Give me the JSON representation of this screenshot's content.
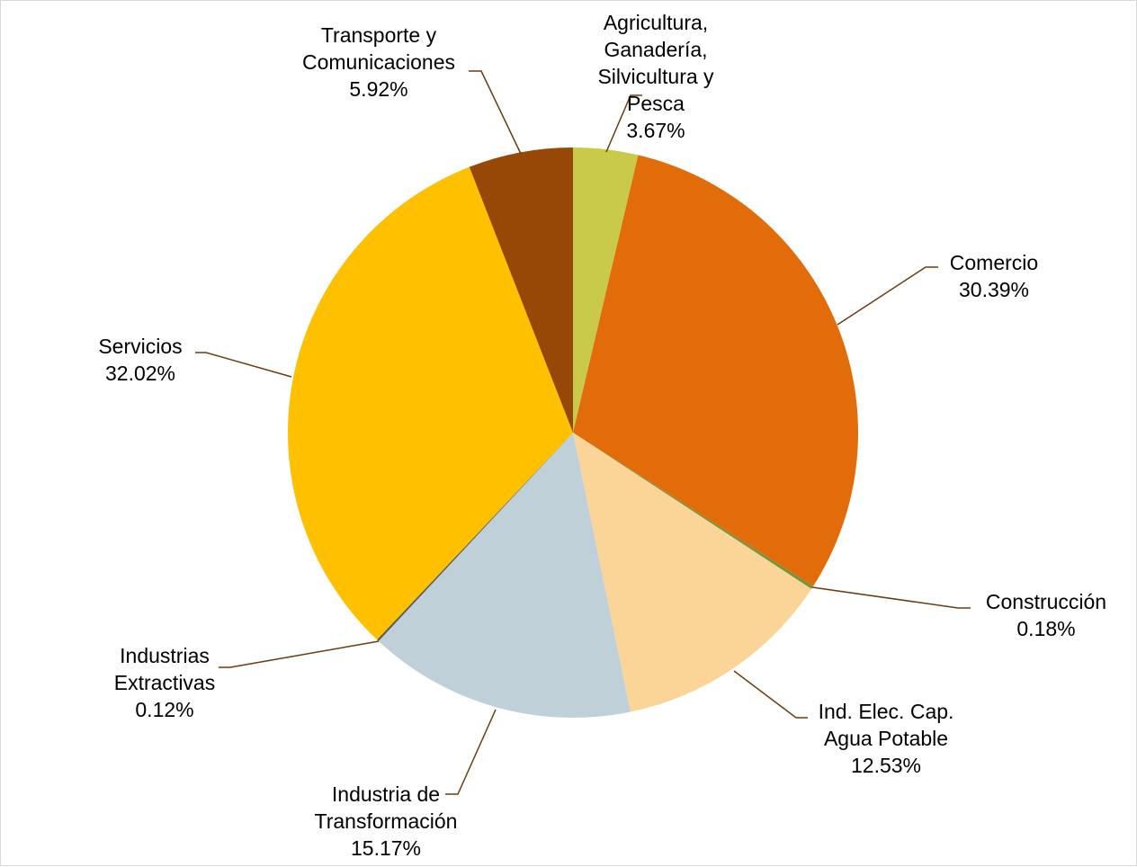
{
  "chart_data": {
    "type": "pie",
    "title": "",
    "start_angle_deg": 0,
    "direction": "clockwise",
    "slices": [
      {
        "label": "Agricultura, Ganadería, Silvicultura y Pesca",
        "label_lines": [
          "Agricultura,",
          "Ganadería,",
          "Silvicultura y",
          "Pesca"
        ],
        "value": 3.67,
        "value_label": "3.67%",
        "color": "#c9c94a"
      },
      {
        "label": "Comercio",
        "label_lines": [
          "Comercio"
        ],
        "value": 30.39,
        "value_label": "30.39%",
        "color": "#e36c0a"
      },
      {
        "label": "Construcción",
        "label_lines": [
          "Construcción"
        ],
        "value": 0.18,
        "value_label": "0.18%",
        "color": "#77933c"
      },
      {
        "label": "Ind. Elec. Cap. Agua Potable",
        "label_lines": [
          "Ind. Elec. Cap.",
          "Agua Potable"
        ],
        "value": 12.53,
        "value_label": "12.53%",
        "color": "#fad597"
      },
      {
        "label": "Industria de Transformación",
        "label_lines": [
          "Industria de",
          "Transformación"
        ],
        "value": 15.17,
        "value_label": "15.17%",
        "color": "#bfd0d8"
      },
      {
        "label": "Industrias Extractivas",
        "label_lines": [
          "Industrias",
          "Extractivas"
        ],
        "value": 0.12,
        "value_label": "0.12%",
        "color": "#5c5c5c"
      },
      {
        "label": "Servicios",
        "label_lines": [
          "Servicios"
        ],
        "value": 32.02,
        "value_label": "32.02%",
        "color": "#ffc000"
      },
      {
        "label": "Transporte y Comunicaciones",
        "label_lines": [
          "Transporte y",
          "Comunicaciones"
        ],
        "value": 5.92,
        "value_label": "5.92%",
        "color": "#974706"
      }
    ],
    "legend": "none",
    "leader_line_color": "#6b3b0e"
  }
}
